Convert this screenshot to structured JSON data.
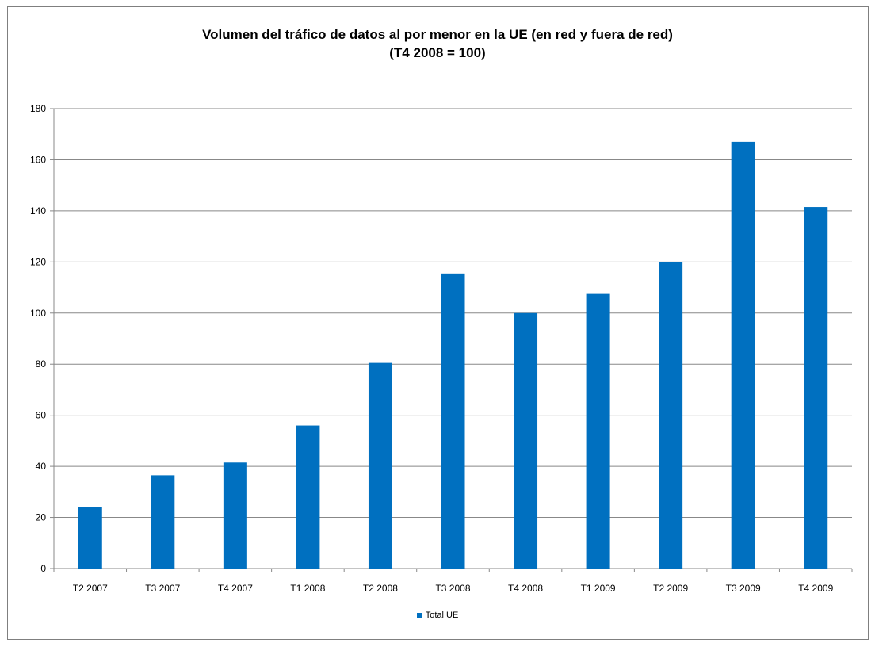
{
  "chart_data": {
    "type": "bar",
    "title": "Volumen del tráfico de datos al por menor en la UE (en red y fuera de red)",
    "subtitle": "(T4 2008 = 100)",
    "categories": [
      "T2 2007",
      "T3 2007",
      "T4 2007",
      "T1 2008",
      "T2 2008",
      "T3 2008",
      "T4 2008",
      "T1 2009",
      "T2 2009",
      "T3 2009",
      "T4 2009"
    ],
    "series": [
      {
        "name": "Total UE",
        "values": [
          24,
          36.5,
          41.5,
          56,
          80.5,
          115.5,
          100,
          107.5,
          120,
          167,
          141.5
        ]
      }
    ],
    "ylim": [
      0,
      180
    ],
    "yticks": [
      0,
      20,
      40,
      60,
      80,
      100,
      120,
      140,
      160,
      180
    ],
    "grid": true,
    "legend": "bottom",
    "colors": {
      "bar": "#0070c0",
      "grid": "#888888",
      "axis": "#888888"
    }
  }
}
